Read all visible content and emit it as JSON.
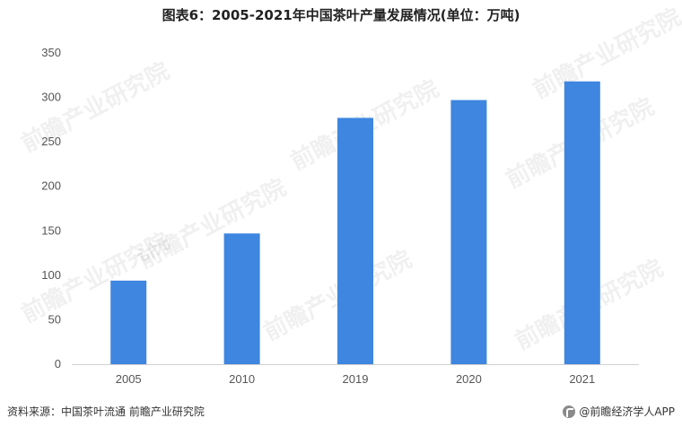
{
  "chart_data": {
    "type": "bar",
    "title": "图表6：2005-2021年中国茶叶产量发展情况(单位：万吨)",
    "categories": [
      "2005",
      "2010",
      "2019",
      "2020",
      "2021"
    ],
    "values": [
      94,
      147,
      277,
      297,
      318
    ],
    "ylim": [
      0,
      350
    ],
    "yticks": [
      0,
      50,
      100,
      150,
      200,
      250,
      300,
      350
    ],
    "grid": false,
    "legend": "none",
    "bar_color": "#3e86e0"
  },
  "footer": {
    "source": "资料来源：中国茶叶流通 前瞻产业研究院",
    "brand": "@前瞻经济学人APP"
  },
  "watermark": {
    "text": "前瞻产业研究院"
  }
}
